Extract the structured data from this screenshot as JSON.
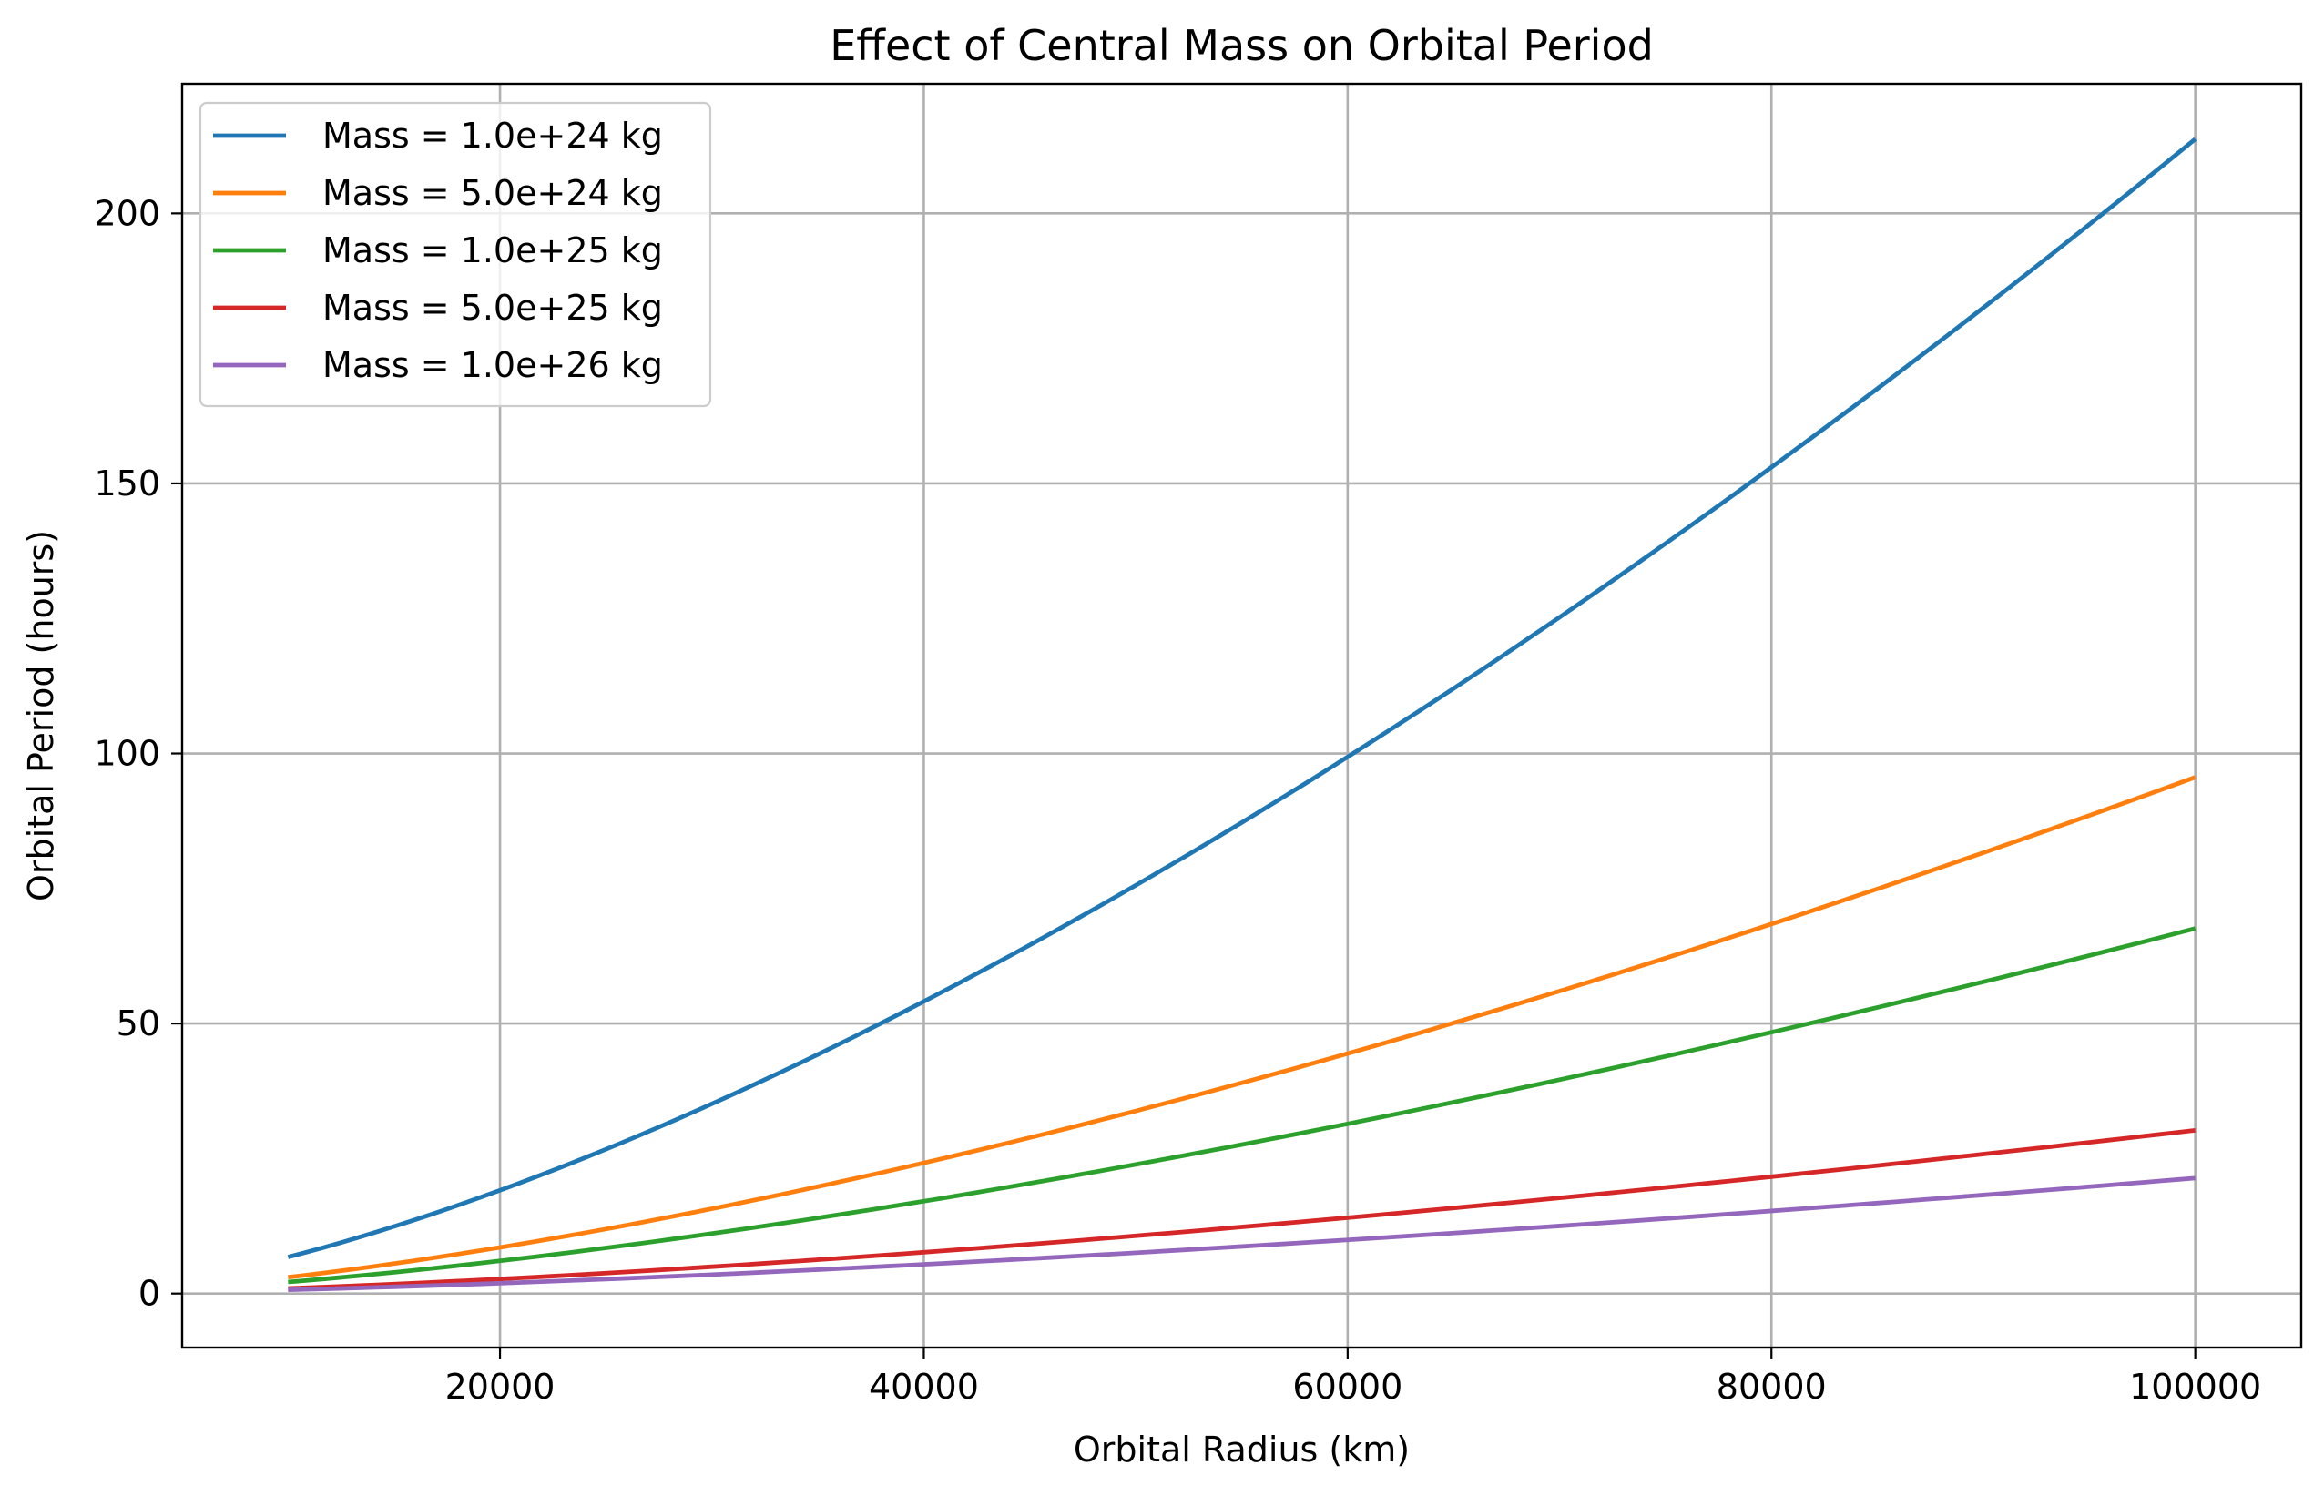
{
  "chart_data": {
    "type": "line",
    "title": "Effect of Central Mass on Orbital Period",
    "xlabel": "Orbital Radius (km)",
    "ylabel": "Orbital Period (hours)",
    "xlim": [
      5000,
      105000
    ],
    "ylim": [
      -10,
      224
    ],
    "xticks": [
      20000,
      40000,
      60000,
      80000,
      100000
    ],
    "xtick_labels": [
      "20000",
      "40000",
      "60000",
      "80000",
      "100000"
    ],
    "yticks": [
      0,
      50,
      100,
      150,
      200
    ],
    "ytick_labels": [
      "0",
      "50",
      "100",
      "150",
      "200"
    ],
    "grid": true,
    "legend_position": "top-left",
    "x": [
      10000,
      20000,
      30000,
      40000,
      50000,
      60000,
      70000,
      80000,
      90000,
      100000
    ],
    "series": [
      {
        "name": "Mass = 1.0e+24 kg",
        "color": "#1f77b4",
        "values": [
          6.76,
          19.12,
          35.13,
          54.09,
          75.59,
          99.37,
          125.22,
          152.99,
          182.54,
          213.77
        ]
      },
      {
        "name": "Mass = 5.0e+24 kg",
        "color": "#ff7f0e",
        "values": [
          3.02,
          8.55,
          15.71,
          24.19,
          33.81,
          44.44,
          56.0,
          68.42,
          81.63,
          95.6
        ]
      },
      {
        "name": "Mass = 1.0e+25 kg",
        "color": "#2ca02c",
        "values": [
          2.14,
          6.05,
          11.11,
          17.1,
          23.9,
          31.42,
          39.6,
          48.38,
          57.72,
          67.6
        ]
      },
      {
        "name": "Mass = 5.0e+25 kg",
        "color": "#d62728",
        "values": [
          0.96,
          2.7,
          4.97,
          7.65,
          10.69,
          14.05,
          17.71,
          21.64,
          25.82,
          30.23
        ]
      },
      {
        "name": "Mass = 1.0e+26 kg",
        "color": "#9467bd",
        "values": [
          0.68,
          1.91,
          3.51,
          5.41,
          7.56,
          9.94,
          12.52,
          15.3,
          18.25,
          21.38
        ]
      }
    ]
  }
}
